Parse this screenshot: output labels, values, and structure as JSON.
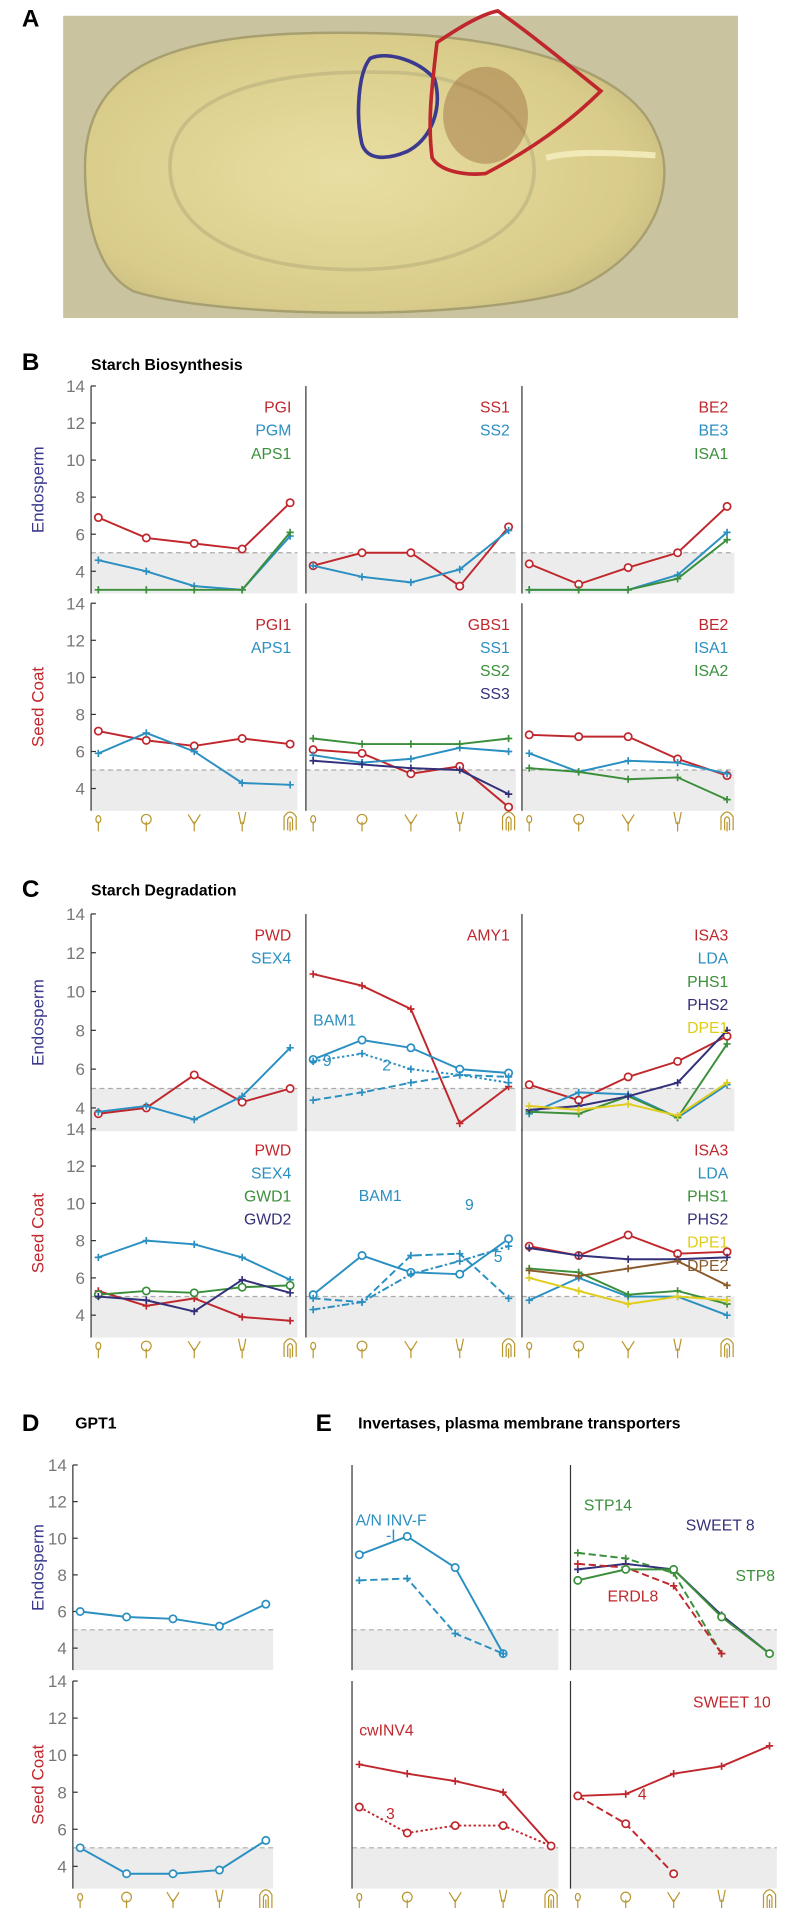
{
  "panel_a_label": "A",
  "chart_data": [
    {
      "type": "line",
      "panel_label": "B",
      "title": "Starch Biosynthesis",
      "row_label": "Endosperm",
      "row_label_color": "#3b3a8f",
      "ylim": [
        2.8,
        14
      ],
      "yticks": [
        4,
        6,
        8,
        10,
        12,
        14
      ],
      "threshold": 5,
      "series": [
        {
          "name": "PGI",
          "color": "#c0272d",
          "marker": "o",
          "dash": "solid",
          "values": [
            6.9,
            5.8,
            5.5,
            5.2,
            7.7
          ]
        },
        {
          "name": "PGM",
          "color": "#2a8fc1",
          "marker": "+",
          "dash": "solid",
          "values": [
            4.6,
            4.0,
            3.2,
            3.0,
            5.9
          ]
        },
        {
          "name": "APS1",
          "color": "#3b8f3b",
          "marker": "+",
          "dash": "solid",
          "values": [
            3.0,
            3.0,
            3.0,
            3.0,
            6.1
          ]
        }
      ]
    },
    {
      "type": "line",
      "ylim": [
        2.8,
        14
      ],
      "threshold": 5,
      "series": [
        {
          "name": "SS1",
          "color": "#c0272d",
          "marker": "o",
          "dash": "solid",
          "values": [
            4.3,
            5.0,
            5.0,
            3.2,
            6.4
          ]
        },
        {
          "name": "SS2",
          "color": "#2a8fc1",
          "marker": "+",
          "dash": "solid",
          "values": [
            4.3,
            3.7,
            3.4,
            4.1,
            6.2
          ]
        }
      ]
    },
    {
      "type": "line",
      "ylim": [
        2.8,
        14
      ],
      "threshold": 5,
      "series": [
        {
          "name": "BE2",
          "color": "#c0272d",
          "marker": "o",
          "dash": "solid",
          "values": [
            4.4,
            3.3,
            4.2,
            5.0,
            7.5
          ]
        },
        {
          "name": "BE3",
          "color": "#2a8fc1",
          "marker": "+",
          "dash": "solid",
          "values": [
            3.0,
            3.0,
            3.0,
            3.8,
            6.1
          ]
        },
        {
          "name": "ISA1",
          "color": "#3b8f3b",
          "marker": "+",
          "dash": "solid",
          "values": [
            3.0,
            3.0,
            3.0,
            3.6,
            5.7
          ]
        }
      ]
    },
    {
      "type": "line",
      "row_label": "Seed Coat",
      "row_label_color": "#c0272d",
      "ylim": [
        2.8,
        14
      ],
      "yticks": [
        4,
        6,
        8,
        10,
        12,
        14
      ],
      "threshold": 5,
      "series": [
        {
          "name": "PGI1",
          "color": "#c0272d",
          "marker": "o",
          "dash": "solid",
          "values": [
            7.1,
            6.6,
            6.3,
            6.7,
            6.4
          ]
        },
        {
          "name": "APS1",
          "color": "#2a8fc1",
          "marker": "+",
          "dash": "solid",
          "values": [
            5.9,
            7.0,
            6.0,
            4.3,
            4.2
          ]
        }
      ]
    },
    {
      "type": "line",
      "ylim": [
        2.8,
        14
      ],
      "threshold": 5,
      "series": [
        {
          "name": "GBS1",
          "color": "#c0272d",
          "marker": "o",
          "dash": "solid",
          "values": [
            6.1,
            5.9,
            4.8,
            5.2,
            3.0
          ]
        },
        {
          "name": "SS1",
          "color": "#2a8fc1",
          "marker": "+",
          "dash": "solid",
          "values": [
            5.8,
            5.4,
            5.6,
            6.2,
            6.0
          ]
        },
        {
          "name": "SS2",
          "color": "#3b8f3b",
          "marker": "+",
          "dash": "solid",
          "values": [
            6.7,
            6.4,
            6.4,
            6.4,
            6.7
          ]
        },
        {
          "name": "SS3",
          "color": "#33307a",
          "marker": "+",
          "dash": "solid",
          "values": [
            5.5,
            5.3,
            5.1,
            5.0,
            3.7
          ]
        }
      ]
    },
    {
      "type": "line",
      "ylim": [
        2.8,
        14
      ],
      "threshold": 5,
      "series": [
        {
          "name": "BE2",
          "color": "#c0272d",
          "marker": "o",
          "dash": "solid",
          "values": [
            6.9,
            6.8,
            6.8,
            5.6,
            4.7
          ]
        },
        {
          "name": "ISA1",
          "color": "#2a8fc1",
          "marker": "+",
          "dash": "solid",
          "values": [
            5.9,
            4.9,
            5.5,
            5.4,
            4.8
          ]
        },
        {
          "name": "ISA2",
          "color": "#3b8f3b",
          "marker": "+",
          "dash": "solid",
          "values": [
            5.1,
            4.9,
            4.5,
            4.6,
            3.4
          ]
        }
      ]
    },
    {
      "type": "line",
      "panel_label": "C",
      "title": "Starch Degradation",
      "row_label": "Endosperm",
      "row_label_color": "#3b3a8f",
      "ylim": [
        2.8,
        14
      ],
      "yticks": [
        4,
        6,
        8,
        10,
        12,
        14
      ],
      "threshold": 5,
      "series": [
        {
          "name": "PWD",
          "color": "#c0272d",
          "marker": "o",
          "dash": "solid",
          "values": [
            3.7,
            4.0,
            5.7,
            4.3,
            5.0
          ]
        },
        {
          "name": "SEX4",
          "color": "#2a8fc1",
          "marker": "+",
          "dash": "solid",
          "values": [
            3.8,
            4.1,
            3.4,
            4.6,
            7.1
          ]
        }
      ]
    },
    {
      "type": "line",
      "ylim": [
        2.8,
        14
      ],
      "threshold": 5,
      "series": [
        {
          "name": "AMY1",
          "color": "#c0272d",
          "marker": "+",
          "dash": "solid",
          "values": [
            10.9,
            10.3,
            9.1,
            3.2,
            5.1
          ]
        },
        {
          "name": "BAM1",
          "color": "#2a8fc1",
          "marker": "o",
          "dash": "solid",
          "values": [
            6.5,
            7.5,
            7.1,
            6.0,
            5.8
          ]
        },
        {
          "name": "9",
          "color": "#2a8fc1",
          "marker": "+",
          "dash": "dotted",
          "values": [
            6.4,
            6.8,
            6.0,
            5.7,
            5.3
          ]
        },
        {
          "name": "2",
          "color": "#2a8fc1",
          "marker": "+",
          "dash": "dashed",
          "values": [
            4.4,
            4.8,
            5.3,
            5.7,
            5.6
          ]
        }
      ]
    },
    {
      "type": "line",
      "ylim": [
        2.8,
        14
      ],
      "threshold": 5,
      "series": [
        {
          "name": "ISA3",
          "color": "#c0272d",
          "marker": "o",
          "dash": "solid",
          "values": [
            5.2,
            4.4,
            5.6,
            6.4,
            7.7
          ]
        },
        {
          "name": "LDA",
          "color": "#2a8fc1",
          "marker": "+",
          "dash": "solid",
          "values": [
            3.7,
            4.8,
            4.7,
            3.5,
            5.2
          ]
        },
        {
          "name": "PHS1",
          "color": "#3b8f3b",
          "marker": "+",
          "dash": "solid",
          "values": [
            3.8,
            3.7,
            4.6,
            3.5,
            7.3
          ]
        },
        {
          "name": "PHS2",
          "color": "#33307a",
          "marker": "+",
          "dash": "solid",
          "values": [
            3.9,
            4.1,
            4.6,
            5.3,
            8.0
          ]
        },
        {
          "name": "DPE1",
          "color": "#e0cc1a",
          "marker": "+",
          "dash": "solid",
          "values": [
            4.1,
            3.9,
            4.2,
            3.6,
            5.3
          ]
        }
      ]
    },
    {
      "type": "line",
      "row_label": "Seed Coat",
      "row_label_color": "#c0272d",
      "ylim": [
        2.8,
        14
      ],
      "yticks": [
        4,
        6,
        8,
        10,
        12,
        14
      ],
      "threshold": 5,
      "series": [
        {
          "name": "PWD",
          "color": "#c0272d",
          "marker": "+",
          "dash": "solid",
          "values": [
            5.3,
            4.5,
            4.9,
            3.9,
            3.7
          ]
        },
        {
          "name": "SEX4",
          "color": "#2a8fc1",
          "marker": "+",
          "dash": "solid",
          "values": [
            7.1,
            8.0,
            7.8,
            7.1,
            5.9
          ]
        },
        {
          "name": "GWD1",
          "color": "#3b8f3b",
          "marker": "o",
          "dash": "solid",
          "values": [
            5.1,
            5.3,
            5.2,
            5.5,
            5.6
          ]
        },
        {
          "name": "GWD2",
          "color": "#33307a",
          "marker": "+",
          "dash": "solid",
          "values": [
            5.0,
            4.8,
            4.2,
            5.9,
            5.2
          ]
        }
      ]
    },
    {
      "type": "line",
      "ylim": [
        2.8,
        14
      ],
      "threshold": 5,
      "series": [
        {
          "name": "BAM1",
          "color": "#2a8fc1",
          "marker": "o",
          "dash": "solid",
          "values": [
            5.1,
            7.2,
            6.3,
            6.2,
            8.1
          ]
        },
        {
          "name": "9",
          "color": "#2a8fc1",
          "marker": "+",
          "dash": "dashdot",
          "values": [
            4.3,
            4.7,
            6.2,
            6.9,
            7.7
          ]
        },
        {
          "name": "5",
          "color": "#2a8fc1",
          "marker": "+",
          "dash": "dashed",
          "values": [
            4.9,
            4.7,
            7.2,
            7.3,
            4.9
          ]
        }
      ]
    },
    {
      "type": "line",
      "ylim": [
        2.8,
        14
      ],
      "threshold": 5,
      "series": [
        {
          "name": "ISA3",
          "color": "#c0272d",
          "marker": "o",
          "dash": "solid",
          "values": [
            7.7,
            7.2,
            8.3,
            7.3,
            7.4
          ]
        },
        {
          "name": "LDA",
          "color": "#2a8fc1",
          "marker": "+",
          "dash": "solid",
          "values": [
            4.8,
            6.0,
            5.0,
            5.0,
            4.0
          ]
        },
        {
          "name": "PHS1",
          "color": "#3b8f3b",
          "marker": "+",
          "dash": "solid",
          "values": [
            6.5,
            6.3,
            5.1,
            5.3,
            4.6
          ]
        },
        {
          "name": "PHS2",
          "color": "#33307a",
          "marker": "+",
          "dash": "solid",
          "values": [
            7.6,
            7.2,
            7.0,
            7.0,
            7.1
          ]
        },
        {
          "name": "DPE1",
          "color": "#e0cc1a",
          "marker": "+",
          "dash": "solid",
          "values": [
            6.0,
            5.3,
            4.6,
            5.0,
            4.8
          ]
        },
        {
          "name": "DPE2",
          "color": "#8a5a2b",
          "marker": "+",
          "dash": "solid",
          "values": [
            6.4,
            6.1,
            6.5,
            6.9,
            5.6
          ]
        }
      ]
    },
    {
      "type": "line",
      "panel_label": "D",
      "title": "GPT1",
      "row_label": "Endosperm",
      "row_label_color": "#3b3a8f",
      "ylim": [
        2.8,
        14
      ],
      "yticks": [
        4,
        6,
        8,
        10,
        12,
        14
      ],
      "threshold": 5,
      "series": [
        {
          "color": "#2a8fc1",
          "marker": "o",
          "dash": "solid",
          "values": [
            6.0,
            5.7,
            5.6,
            5.2,
            6.4
          ]
        }
      ]
    },
    {
      "type": "line",
      "row_label": "Seed Coat",
      "row_label_color": "#c0272d",
      "ylim": [
        2.8,
        14
      ],
      "yticks": [
        4,
        6,
        8,
        10,
        12,
        14
      ],
      "threshold": 5,
      "series": [
        {
          "color": "#2a8fc1",
          "marker": "o",
          "dash": "solid",
          "values": [
            5.0,
            3.6,
            3.6,
            3.8,
            5.4
          ]
        }
      ]
    },
    {
      "type": "line",
      "panel_label": "E",
      "title": "Invertases, plasma membrane transporters",
      "ylim": [
        2.8,
        14
      ],
      "threshold": 5,
      "series": [
        {
          "name": "A/N INV-F",
          "color": "#2a8fc1",
          "marker": "o",
          "dash": "solid",
          "values": [
            9.1,
            10.1,
            8.4,
            3.7,
            null
          ]
        },
        {
          "name": "-I",
          "color": "#2a8fc1",
          "marker": "+",
          "dash": "dashed",
          "values": [
            7.7,
            7.8,
            4.8,
            3.7,
            null
          ]
        }
      ]
    },
    {
      "type": "line",
      "ylim": [
        2.8,
        14
      ],
      "threshold": 5,
      "series": [
        {
          "name": "STP14",
          "color": "#3b8f3b",
          "marker": "+",
          "dash": "dashed",
          "values": [
            9.2,
            8.9,
            8.1,
            3.7,
            null
          ]
        },
        {
          "name": "SWEET 8",
          "color": "#33307a",
          "marker": "+",
          "dash": "solid",
          "values": [
            8.3,
            8.6,
            8.3,
            5.8,
            3.7
          ]
        },
        {
          "name": "ERDL8",
          "color": "#c0272d",
          "marker": "+",
          "dash": "dashed",
          "values": [
            8.6,
            8.4,
            7.4,
            3.7,
            null
          ]
        },
        {
          "name": "STP8",
          "color": "#3b8f3b",
          "marker": "o",
          "dash": "solid",
          "values": [
            7.7,
            8.3,
            8.3,
            5.7,
            3.7
          ]
        }
      ]
    },
    {
      "type": "line",
      "ylim": [
        2.8,
        14
      ],
      "threshold": 5,
      "series": [
        {
          "name": "cwINV4",
          "color": "#c0272d",
          "marker": "+",
          "dash": "solid",
          "values": [
            9.5,
            9.0,
            8.6,
            8.0,
            5.1
          ]
        },
        {
          "name": "3",
          "color": "#c0272d",
          "marker": "o",
          "dash": "dotted",
          "values": [
            7.2,
            5.8,
            6.2,
            6.2,
            5.1
          ]
        }
      ]
    },
    {
      "type": "line",
      "ylim": [
        2.8,
        14
      ],
      "threshold": 5,
      "series": [
        {
          "name": "SWEET 10",
          "color": "#c0272d",
          "marker": "+",
          "dash": "solid",
          "values": [
            7.8,
            7.9,
            9.0,
            9.4,
            10.5
          ]
        },
        {
          "name": "4",
          "color": "#c0272d",
          "marker": "o",
          "dash": "dashed",
          "values": [
            7.8,
            6.3,
            3.6,
            null,
            null
          ]
        }
      ]
    }
  ]
}
